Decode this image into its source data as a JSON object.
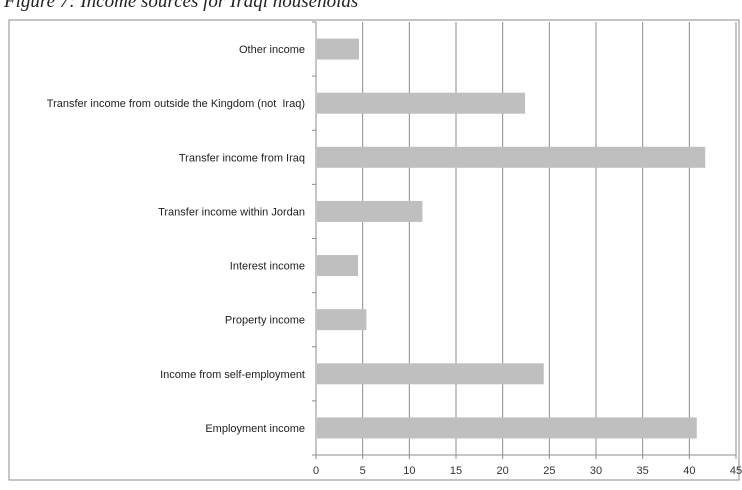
{
  "figure_title": "Figure 7: Income sources for Iraqi households",
  "chart_data": {
    "type": "bar",
    "orientation": "horizontal",
    "categories": [
      "Other income",
      "Transfer income from outside the Kingdom (not  Iraq)",
      "Transfer income from Iraq",
      "Transfer income within Jordan",
      "Interest income",
      "Property income",
      "Income from self-employment",
      "Employment income"
    ],
    "values": [
      4.6,
      22.4,
      41.7,
      11.4,
      4.5,
      5.4,
      24.4,
      40.8
    ],
    "xlim": [
      0,
      45
    ],
    "xticks": [
      "0",
      "5",
      "10",
      "15",
      "20",
      "25",
      "30",
      "35",
      "40",
      "45"
    ],
    "title": "",
    "xlabel": "",
    "ylabel": "",
    "grid": "vertical",
    "legend": "none",
    "bar_color": "#bfbfbf",
    "grid_color": "#8c8c8c"
  }
}
